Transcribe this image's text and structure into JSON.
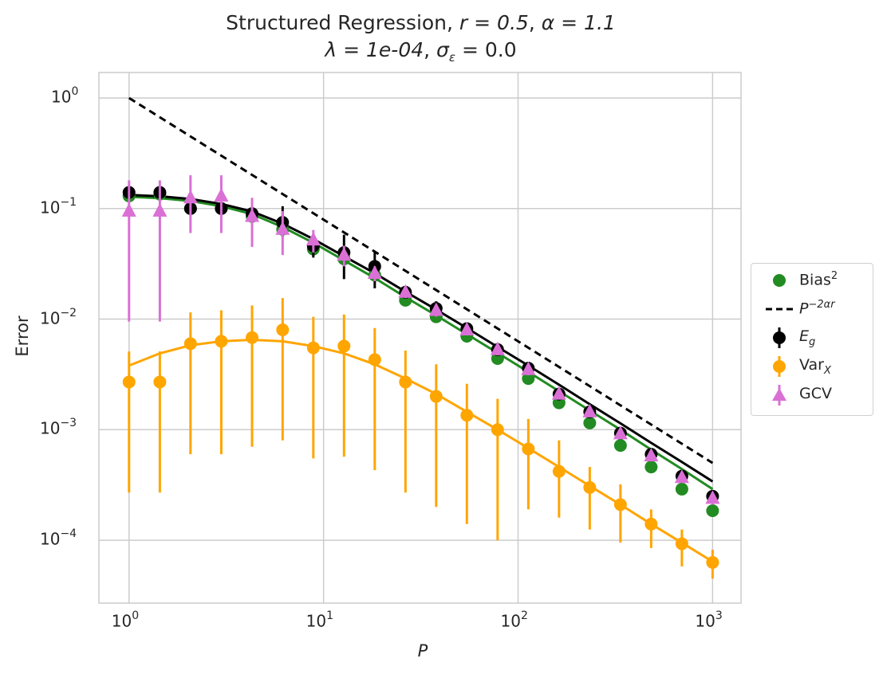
{
  "title": {
    "line1_prefix": "Structured Regression, ",
    "r": "r = 0.5",
    "alpha": "α = 1.1",
    "lambda": "λ = 1e-04",
    "sigma": "σ",
    "sigma_sub": "ε",
    "sigma_val": " = 0.0"
  },
  "axes": {
    "xlabel": "P",
    "ylabel": "Error",
    "xticks": [
      {
        "base": "10",
        "exp": "0"
      },
      {
        "base": "10",
        "exp": "1"
      },
      {
        "base": "10",
        "exp": "2"
      },
      {
        "base": "10",
        "exp": "3"
      }
    ],
    "yticks": [
      {
        "base": "10",
        "exp": "0"
      },
      {
        "base": "10",
        "exp": "−1"
      },
      {
        "base": "10",
        "exp": "−2"
      },
      {
        "base": "10",
        "exp": "−3"
      },
      {
        "base": "10",
        "exp": "−4"
      }
    ]
  },
  "legend": {
    "bias": {
      "text": "Bias",
      "sup": "2"
    },
    "power": {
      "text": "P",
      "sup": "−2αr"
    },
    "eg": {
      "text": "E",
      "sub": "g"
    },
    "var": {
      "text": "Var",
      "sub": "X"
    },
    "gcv": {
      "text": "GCV"
    }
  },
  "colors": {
    "bias": "#228b22",
    "eg": "#000000",
    "var": "#ffa500",
    "gcv": "#da70d6",
    "power": "#000000",
    "grid": "#cccccc"
  },
  "chart_data": {
    "type": "scatter",
    "xscale": "log",
    "yscale": "log",
    "xlim": [
      0.7,
      1400
    ],
    "ylim": [
      2.7e-05,
      1.7
    ],
    "x": [
      1,
      1.44,
      2.07,
      2.98,
      4.29,
      6.16,
      8.86,
      12.74,
      18.33,
      26.37,
      37.93,
      54.55,
      78.48,
      112.9,
      162.4,
      233.6,
      336.0,
      483.3,
      695.2,
      1000
    ],
    "series": [
      {
        "name": "Bias^2",
        "kind": "points",
        "values": [
          0.13,
          0.135,
          0.1,
          0.1,
          0.085,
          0.065,
          0.043,
          0.035,
          0.025,
          0.0148,
          0.0105,
          0.007,
          0.0044,
          0.0029,
          0.00175,
          0.00115,
          0.00072,
          0.00046,
          0.00029,
          0.000185
        ]
      },
      {
        "name": "Bias^2 theory",
        "kind": "line",
        "values": [
          0.128,
          0.124,
          0.117,
          0.105,
          0.089,
          0.068,
          0.049,
          0.034,
          0.0235,
          0.0158,
          0.0108,
          0.0073,
          0.00495,
          0.00333,
          0.00223,
          0.00149,
          0.001,
          0.00066,
          0.00044,
          0.00029
        ]
      },
      {
        "name": "P^-2ar",
        "kind": "dashed",
        "x": [
          1,
          1000
        ],
        "values": [
          1.0,
          0.0005
        ]
      },
      {
        "name": "E_g",
        "kind": "errorbar",
        "values": [
          0.14,
          0.14,
          0.1,
          0.1,
          0.09,
          0.075,
          0.046,
          0.04,
          0.03,
          0.0175,
          0.0125,
          0.0082,
          0.0053,
          0.0036,
          0.0021,
          0.00145,
          0.00093,
          0.0006,
          0.00038,
          0.00025
        ],
        "err_low": [
          0.13,
          0.13,
          0.09,
          0.09,
          0.075,
          0.055,
          0.036,
          0.023,
          0.019,
          0.0155,
          0.0105,
          0.0072,
          0.0047,
          0.0032,
          0.0019,
          0.0013,
          0.00084,
          0.00054,
          0.00034,
          0.00022
        ],
        "err_high": [
          0.15,
          0.15,
          0.11,
          0.11,
          0.105,
          0.105,
          0.057,
          0.058,
          0.041,
          0.0195,
          0.0145,
          0.0092,
          0.0059,
          0.004,
          0.0023,
          0.0016,
          0.00102,
          0.00066,
          0.00042,
          0.00028
        ]
      },
      {
        "name": "E_g theory",
        "kind": "line",
        "values": [
          0.133,
          0.129,
          0.122,
          0.11,
          0.094,
          0.073,
          0.053,
          0.037,
          0.026,
          0.0177,
          0.0122,
          0.0083,
          0.0056,
          0.0038,
          0.00255,
          0.0017,
          0.00114,
          0.00076,
          0.00051,
          0.00034
        ]
      },
      {
        "name": "Var_X",
        "kind": "errorbar",
        "values": [
          0.0027,
          0.0027,
          0.006,
          0.0063,
          0.0068,
          0.008,
          0.0055,
          0.0057,
          0.0043,
          0.0027,
          0.002,
          0.00135,
          0.001,
          0.00067,
          0.00042,
          0.0003,
          0.00021,
          0.00014,
          9.3e-05,
          6.3e-05
        ],
        "err_low": [
          0.00027,
          0.00027,
          0.0006,
          0.0006,
          0.0007,
          0.0008,
          0.00055,
          0.00057,
          0.00043,
          0.00027,
          0.0002,
          0.00014,
          0.0001,
          0.00019,
          0.00016,
          0.000125,
          9.5e-05,
          8.5e-05,
          5.8e-05,
          4.5e-05
        ],
        "err_high": [
          0.0051,
          0.0051,
          0.0115,
          0.012,
          0.0133,
          0.0155,
          0.0105,
          0.011,
          0.0083,
          0.0052,
          0.0039,
          0.0026,
          0.0019,
          0.00125,
          0.0008,
          0.00046,
          0.00032,
          0.00019,
          0.000125,
          8.2e-05
        ]
      },
      {
        "name": "Var_X theory",
        "kind": "line",
        "values": [
          0.0038,
          0.0049,
          0.0058,
          0.0063,
          0.0065,
          0.0063,
          0.0057,
          0.0049,
          0.0039,
          0.0029,
          0.0021,
          0.00145,
          0.001,
          0.00068,
          0.00046,
          0.00031,
          0.00021,
          0.00014,
          9.5e-05,
          6.4e-05
        ]
      },
      {
        "name": "GCV",
        "kind": "errorbar-triangle",
        "values": [
          0.095,
          0.095,
          0.125,
          0.13,
          0.085,
          0.065,
          0.052,
          0.038,
          0.026,
          0.0175,
          0.012,
          0.008,
          0.0053,
          0.0035,
          0.0021,
          0.00145,
          0.00092,
          0.00058,
          0.00037,
          0.00024
        ],
        "err_low": [
          0.0095,
          0.0095,
          0.06,
          0.06,
          0.045,
          0.038,
          0.04,
          0.03,
          0.022,
          0.0155,
          0.0105,
          0.0072,
          0.0047,
          0.0031,
          0.0019,
          0.0013,
          0.00083,
          0.00053,
          0.00033,
          0.00021
        ],
        "err_high": [
          0.18,
          0.18,
          0.2,
          0.2,
          0.125,
          0.095,
          0.064,
          0.046,
          0.03,
          0.0195,
          0.0135,
          0.0088,
          0.0059,
          0.0039,
          0.0023,
          0.0016,
          0.001,
          0.00064,
          0.00041,
          0.00027
        ]
      }
    ],
    "legend_position": "center-right-outside",
    "grid": true
  }
}
